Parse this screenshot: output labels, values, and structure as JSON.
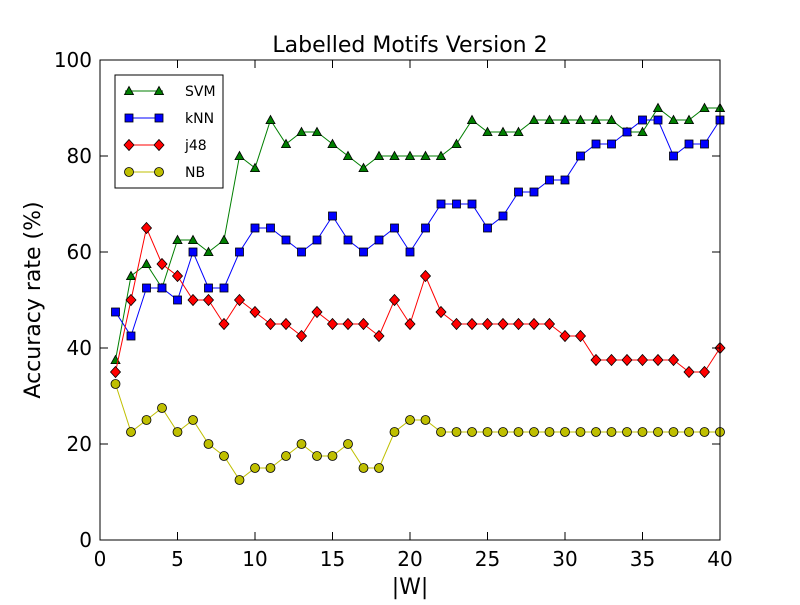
{
  "chart_data": {
    "type": "line",
    "title": "Labelled Motifs Version 2",
    "xlabel": "|W|",
    "ylabel": "Accuracy rate (%)",
    "xlim": [
      0,
      40
    ],
    "ylim": [
      0,
      100
    ],
    "xticks": [
      0,
      5,
      10,
      15,
      20,
      25,
      30,
      35,
      40
    ],
    "yticks": [
      0,
      20,
      40,
      60,
      80,
      100
    ],
    "grid": false,
    "legend_position": "top-left",
    "x": [
      1,
      2,
      3,
      4,
      5,
      6,
      7,
      8,
      9,
      10,
      11,
      12,
      13,
      14,
      15,
      16,
      17,
      18,
      19,
      20,
      21,
      22,
      23,
      24,
      25,
      26,
      27,
      28,
      29,
      30,
      31,
      32,
      33,
      34,
      35,
      36,
      37,
      38,
      39,
      40
    ],
    "series": [
      {
        "name": "SVM",
        "color": "#007f00",
        "marker": "triangle",
        "values": [
          37.5,
          55,
          57.5,
          52.5,
          62.5,
          62.5,
          60,
          62.5,
          80,
          77.5,
          87.5,
          82.5,
          85,
          85,
          82.5,
          80,
          77.5,
          80,
          80,
          80,
          80,
          80,
          82.5,
          87.5,
          85,
          85,
          85,
          87.5,
          87.5,
          87.5,
          87.5,
          87.5,
          87.5,
          85,
          85,
          90,
          87.5,
          87.5,
          90,
          90
        ]
      },
      {
        "name": "kNN",
        "color": "#0000ff",
        "marker": "square",
        "values": [
          47.5,
          42.5,
          52.5,
          52.5,
          50,
          60,
          52.5,
          52.5,
          60,
          65,
          65,
          62.5,
          60,
          62.5,
          67.5,
          62.5,
          60,
          62.5,
          65,
          60,
          65,
          70,
          70,
          70,
          65,
          67.5,
          72.5,
          72.5,
          75,
          75,
          80,
          82.5,
          82.5,
          85,
          87.5,
          87.5,
          80,
          82.5,
          82.5,
          87.5
        ]
      },
      {
        "name": "j48",
        "color": "#ff0000",
        "marker": "diamond",
        "values": [
          35,
          50,
          65,
          57.5,
          55,
          50,
          50,
          45,
          50,
          47.5,
          45,
          45,
          42.5,
          47.5,
          45,
          45,
          45,
          42.5,
          50,
          45,
          55,
          47.5,
          45,
          45,
          45,
          45,
          45,
          45,
          45,
          42.5,
          42.5,
          37.5,
          37.5,
          37.5,
          37.5,
          37.5,
          37.5,
          35,
          35,
          40
        ]
      },
      {
        "name": "NB",
        "color": "#bfbf00",
        "marker": "circle",
        "values": [
          32.5,
          22.5,
          25,
          27.5,
          22.5,
          25,
          20,
          17.5,
          12.5,
          15,
          15,
          17.5,
          20,
          17.5,
          17.5,
          20,
          15,
          15,
          22.5,
          25,
          25,
          22.5,
          22.5,
          22.5,
          22.5,
          22.5,
          22.5,
          22.5,
          22.5,
          22.5,
          22.5,
          22.5,
          22.5,
          22.5,
          22.5,
          22.5,
          22.5,
          22.5,
          22.5,
          22.5
        ]
      }
    ]
  }
}
